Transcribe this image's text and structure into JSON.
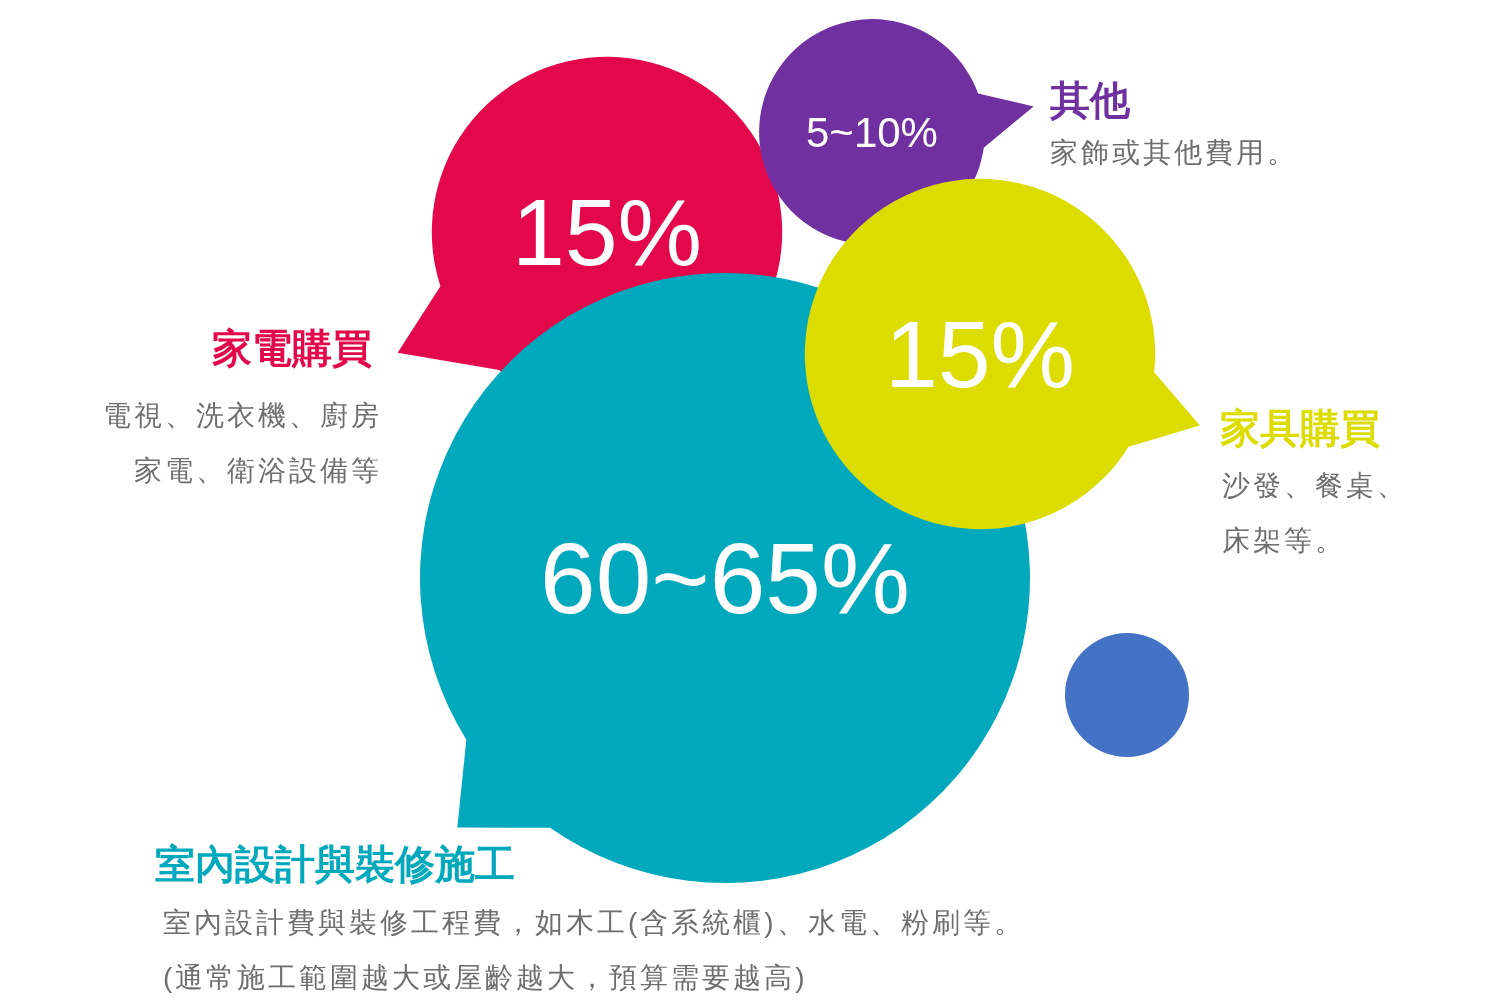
{
  "chart_data": {
    "type": "other",
    "categories": [
      "室內設計與裝修施工",
      "家電購買",
      "家具購買",
      "其他"
    ],
    "values": [
      60,
      15,
      15,
      5
    ],
    "value_labels": [
      "60~65%",
      "15%",
      "15%",
      "5~10%"
    ],
    "colors": [
      "#02a9bd",
      "#e3084b",
      "#dcdc00",
      "#7030a0"
    ],
    "annotations": [
      {
        "text": "室內設計費與裝修工程費，如木工(含系統櫃)、水電、粉刷等。",
        "x": "室內設計與裝修施工"
      },
      {
        "text": "(通常施工範圍越大或屋齡越大，預算需要越高)",
        "x": "室內設計與裝修施工"
      },
      {
        "text": "電視、洗衣機、廚房",
        "x": "家電購買"
      },
      {
        "text": "家電、衛浴設備等",
        "x": "家電購買"
      },
      {
        "text": "沙發、餐桌、",
        "x": "家具購買"
      },
      {
        "text": "床架等。",
        "x": "家具購買"
      },
      {
        "text": "家飾或其他費用。",
        "x": "其他"
      }
    ]
  }
}
